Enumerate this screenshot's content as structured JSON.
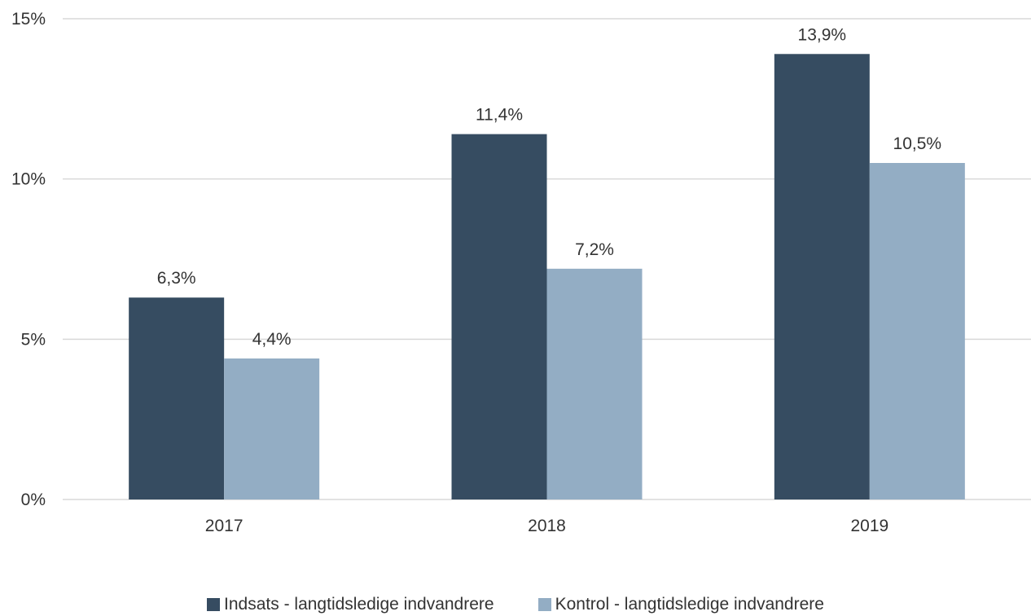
{
  "chart_data": {
    "type": "bar",
    "categories": [
      "2017",
      "2018",
      "2019"
    ],
    "series": [
      {
        "name": "Indsats - langtidsledige indvandrere",
        "values": [
          6.3,
          11.4,
          13.9
        ],
        "labels": [
          "6,3%",
          "11,4%",
          "13,9%"
        ],
        "color": "#364c61"
      },
      {
        "name": "Kontrol - langtidsledige indvandrere",
        "values": [
          4.4,
          7.2,
          10.5
        ],
        "labels": [
          "4,4%",
          "7,2%",
          "10,5%"
        ],
        "color": "#93adc4"
      }
    ],
    "y_ticks": [
      0,
      5,
      10,
      15
    ],
    "y_tick_labels": [
      "0%",
      "5%",
      "10%",
      "15%"
    ],
    "ylim": [
      0,
      15
    ],
    "grid": true,
    "gridline_color": "#d9d9d9",
    "legend_position": "bottom"
  }
}
